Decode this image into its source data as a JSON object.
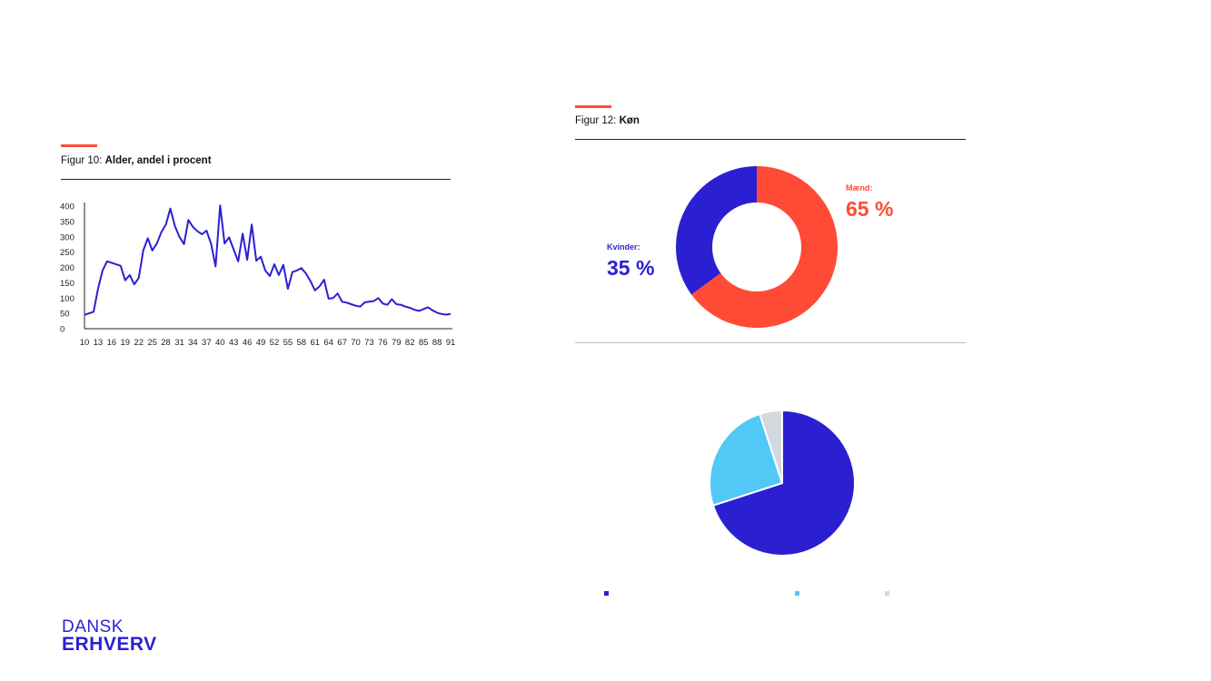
{
  "colors": {
    "accent": "#ff4b36",
    "blue": "#2b1fd2",
    "red": "#ff4b36",
    "lightblue": "#52c8f7",
    "grey": "#d3d8df"
  },
  "fig10": {
    "prefix": "Figur 10: ",
    "title": "Alder, andel i procent"
  },
  "fig12": {
    "prefix": "Figur 12: ",
    "title": "Køn"
  },
  "logo": {
    "line1": "DANSK",
    "line2": "ERHVERV"
  },
  "chart_data": [
    {
      "type": "line",
      "title": "Alder, andel i procent",
      "ylim": [
        0,
        400
      ],
      "yticks": [
        "400",
        "350",
        "300",
        "250",
        "200",
        "150",
        "100",
        "50",
        "0"
      ],
      "xticks": [
        "10",
        "13",
        "16",
        "19",
        "22",
        "25",
        "28",
        "31",
        "34",
        "37",
        "40",
        "43",
        "46",
        "49",
        "52",
        "55",
        "58",
        "61",
        "64",
        "67",
        "70",
        "73",
        "76",
        "79",
        "82",
        "85",
        "88",
        "91"
      ],
      "xlim": [
        10,
        91
      ],
      "grid": false,
      "series": [
        {
          "x": [
            10,
            11,
            12,
            13,
            14,
            15,
            16,
            17,
            18,
            19,
            20,
            21,
            22,
            23,
            24,
            25,
            26,
            27,
            28,
            29,
            30,
            31,
            32,
            33,
            34,
            35,
            36,
            37,
            38,
            39,
            40,
            41,
            42,
            43,
            44,
            45,
            46,
            47,
            48,
            49,
            50,
            51,
            52,
            53,
            54,
            55,
            56,
            57,
            58,
            59,
            60,
            61,
            62,
            63,
            64,
            65,
            66,
            67,
            68,
            69,
            70,
            71,
            72,
            73,
            74,
            75,
            76,
            77,
            78,
            79,
            80,
            81,
            82,
            83,
            84,
            85,
            86,
            87,
            88,
            89,
            90,
            91
          ],
          "y": [
            45,
            50,
            55,
            130,
            190,
            220,
            215,
            210,
            205,
            158,
            175,
            145,
            165,
            255,
            295,
            255,
            278,
            315,
            340,
            392,
            335,
            300,
            276,
            355,
            332,
            318,
            308,
            320,
            278,
            203,
            402,
            278,
            298,
            258,
            220,
            310,
            225,
            340,
            222,
            235,
            190,
            172,
            210,
            175,
            208,
            130,
            185,
            190,
            198,
            180,
            155,
            125,
            138,
            160,
            98,
            100,
            115,
            88,
            85,
            80,
            75,
            72,
            86,
            88,
            90,
            100,
            82,
            78,
            96,
            80,
            78,
            72,
            68,
            62,
            58,
            64,
            70,
            60,
            52,
            48,
            46,
            48
          ]
        }
      ]
    },
    {
      "type": "pie",
      "title": "Køn",
      "donut": true,
      "slices": [
        {
          "label": "Mænd:",
          "value": 65,
          "value_text": "65 %",
          "color": "#ff4b36"
        },
        {
          "label": "Kvinder:",
          "value": 35,
          "value_text": "35 %",
          "color": "#2b1fd2"
        }
      ]
    },
    {
      "type": "pie",
      "donut": false,
      "slices": [
        {
          "value": 70,
          "color": "#2b1fd2"
        },
        {
          "value": 25,
          "color": "#52c8f7"
        },
        {
          "value": 5,
          "color": "#d3d8df"
        }
      ]
    }
  ]
}
